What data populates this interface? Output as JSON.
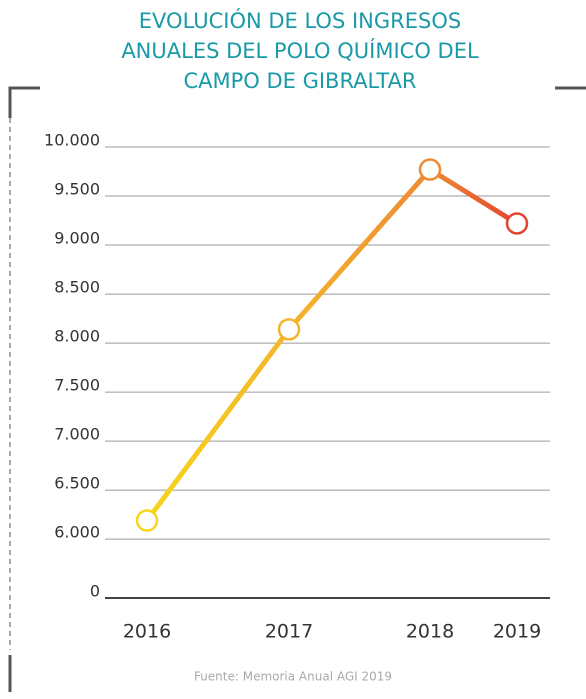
{
  "chart_data": {
    "type": "line",
    "title": [
      "EVOLUCIÓN DE LOS INGRESOS",
      "ANUALES DEL POLO QUÍMICO DEL",
      "CAMPO DE GIBRALTAR"
    ],
    "categories": [
      "2016",
      "2017",
      "2018",
      "2019"
    ],
    "series": [
      {
        "values": [
          6190,
          8140,
          9770,
          9220
        ],
        "colors": [
          "#f7d51c",
          "#f3b52b",
          "#ee8a33",
          "#e3432f"
        ]
      }
    ],
    "ylim": [
      5400,
      10000
    ],
    "yticks": [
      0,
      {
        "value": 6000,
        "label": "6.000"
      },
      {
        "value": 6500,
        "label": "6.500"
      },
      {
        "value": 7000,
        "label": "7.000"
      },
      {
        "value": 7500,
        "label": "7.500"
      },
      {
        "value": 8000,
        "label": "8.000"
      },
      {
        "value": 8500,
        "label": "8.500"
      },
      {
        "value": 9000,
        "label": "9.000"
      },
      {
        "value": 9500,
        "label": "9.500"
      },
      {
        "value": 10000,
        "label": "10.000"
      }
    ],
    "grid": true,
    "source": "Fuente: Memoria Anual AGI 2019"
  }
}
